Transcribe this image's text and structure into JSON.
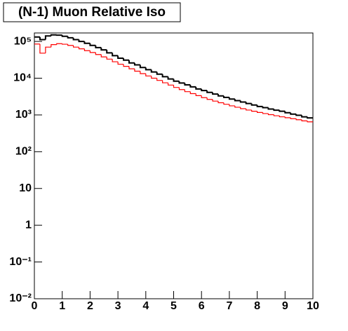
{
  "chart_data": {
    "type": "histogram",
    "title": "(N-1) Muon Relative Iso",
    "bins": [
      0,
      0.2,
      0.4,
      0.6,
      0.8,
      1,
      1.2,
      1.4,
      1.6,
      1.8,
      2,
      2.2,
      2.4,
      2.6,
      2.8,
      3,
      3.2,
      3.4,
      3.6,
      3.8,
      4,
      4.2,
      4.4,
      4.6,
      4.8,
      5,
      5.2,
      5.4,
      5.6,
      5.8,
      6,
      6.2,
      6.4,
      6.6,
      6.8,
      7,
      7.2,
      7.4,
      7.6,
      7.8,
      8,
      8.2,
      8.4,
      8.6,
      8.8,
      9,
      9.2,
      9.4,
      9.6,
      9.8,
      10
    ],
    "series": [
      {
        "color": "#000000",
        "values": [
          132000,
          112000,
          141000,
          151000,
          148000,
          138000,
          126000,
          112000,
          100000,
          89000,
          78000,
          68000,
          59000,
          49000,
          41000,
          35000,
          31000,
          26000,
          23000,
          19500,
          17000,
          14800,
          12900,
          11000,
          9500,
          8300,
          7400,
          6600,
          5800,
          5100,
          4600,
          4100,
          3700,
          3300,
          3000,
          2700,
          2450,
          2240,
          2040,
          1860,
          1700,
          1580,
          1450,
          1350,
          1260,
          1150,
          1050,
          980,
          890,
          830
        ]
      },
      {
        "color": "#ff0000",
        "values": [
          85000,
          48000,
          70000,
          82000,
          87000,
          84000,
          78000,
          70000,
          63000,
          56000,
          50000,
          44000,
          38000,
          33000,
          28000,
          24000,
          21000,
          18000,
          15500,
          13300,
          11500,
          10000,
          8700,
          7500,
          6500,
          5600,
          4900,
          4300,
          3800,
          3350,
          2950,
          2650,
          2380,
          2150,
          1950,
          1770,
          1620,
          1480,
          1360,
          1260,
          1170,
          1090,
          1020,
          950,
          890,
          840,
          790,
          740,
          690,
          650
        ]
      }
    ],
    "xlim": [
      0,
      10
    ],
    "xticks": [
      0,
      1,
      2,
      3,
      4,
      5,
      6,
      7,
      8,
      9,
      10
    ],
    "ylim": [
      0.01,
      170000
    ],
    "log_y": true,
    "yticks": [
      {
        "value": 0.01,
        "label": "10⁻²"
      },
      {
        "value": 0.1,
        "label": "10⁻¹"
      },
      1,
      10,
      {
        "value": 100,
        "label": "10²"
      },
      {
        "value": 1000,
        "label": "10³"
      },
      {
        "value": 10000,
        "label": "10⁴"
      },
      {
        "value": 100000,
        "label": "10⁵"
      }
    ]
  }
}
